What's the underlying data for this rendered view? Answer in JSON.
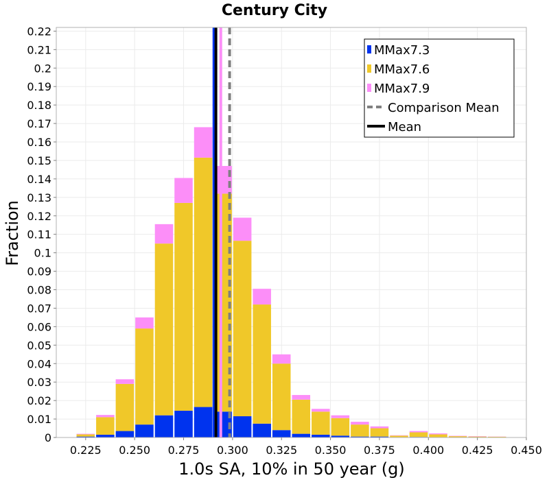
{
  "chart_data": {
    "type": "bar",
    "stacked": true,
    "title": "Century City",
    "xlabel": "1.0s SA, 10% in 50 year (g)",
    "ylabel": "Fraction",
    "xlim": [
      0.21,
      0.45
    ],
    "ylim": [
      0,
      0.222
    ],
    "bin_width": 0.01,
    "x": [
      0.225,
      0.235,
      0.245,
      0.255,
      0.265,
      0.275,
      0.285,
      0.295,
      0.305,
      0.315,
      0.325,
      0.335,
      0.345,
      0.355,
      0.365,
      0.375,
      0.385,
      0.395,
      0.405,
      0.415,
      0.425,
      0.435
    ],
    "series": [
      {
        "name": "MMax7.3",
        "color": "#0033ee",
        "values": [
          0.0005,
          0.0015,
          0.0035,
          0.007,
          0.012,
          0.0145,
          0.0165,
          0.014,
          0.0115,
          0.0075,
          0.004,
          0.002,
          0.0015,
          0.001,
          0.0005,
          0.0005,
          0.0002,
          0.0003,
          0.0002,
          0.0001,
          0.0001,
          0.0001
        ]
      },
      {
        "name": "MMax7.6",
        "color": "#f0c829",
        "values": [
          0.0012,
          0.0095,
          0.0255,
          0.052,
          0.093,
          0.1125,
          0.135,
          0.118,
          0.095,
          0.0645,
          0.036,
          0.0185,
          0.0125,
          0.0095,
          0.0065,
          0.0045,
          0.0008,
          0.0025,
          0.0015,
          0.0006,
          0.0004,
          0.0003
        ]
      },
      {
        "name": "MMax7.9",
        "color": "#fc8ef8",
        "values": [
          0.0003,
          0.0012,
          0.0025,
          0.006,
          0.0105,
          0.0135,
          0.0165,
          0.015,
          0.0125,
          0.0085,
          0.005,
          0.0025,
          0.0015,
          0.0015,
          0.0015,
          0.001,
          0.0002,
          0.0007,
          0.0005,
          0.0002,
          0.0002,
          0.0001
        ]
      }
    ],
    "lines": [
      {
        "name": "Comparison Mean",
        "x": 0.2985,
        "color": "#808080",
        "style": "dashed"
      },
      {
        "name": "Mean",
        "x": 0.2915,
        "color": "#000000",
        "style": "solid"
      }
    ],
    "series_mean_lines": [
      {
        "series": "MMax7.3",
        "x": 0.2905,
        "color": "#0033ee"
      },
      {
        "series": "MMax7.9",
        "x": 0.294,
        "color": "#fc8ef8"
      }
    ],
    "xticks": [
      "0.225",
      "0.250",
      "0.275",
      "0.300",
      "0.325",
      "0.350",
      "0.375",
      "0.400",
      "0.425",
      "0.450"
    ],
    "xtick_values": [
      0.225,
      0.25,
      0.275,
      0.3,
      0.325,
      0.35,
      0.375,
      0.4,
      0.425,
      0.45
    ],
    "yticks": [
      "0",
      "0.01",
      "0.02",
      "0.03",
      "0.04",
      "0.05",
      "0.06",
      "0.07",
      "0.08",
      "0.09",
      "0.1",
      "0.11",
      "0.12",
      "0.13",
      "0.14",
      "0.15",
      "0.16",
      "0.17",
      "0.18",
      "0.19",
      "0.2",
      "0.21",
      "0.22"
    ],
    "ytick_values": [
      0,
      0.01,
      0.02,
      0.03,
      0.04,
      0.05,
      0.06,
      0.07,
      0.08,
      0.09,
      0.1,
      0.11,
      0.12,
      0.13,
      0.14,
      0.15,
      0.16,
      0.17,
      0.18,
      0.19,
      0.2,
      0.21,
      0.22
    ],
    "grid": true,
    "legend": {
      "position": "top-right",
      "entries": [
        {
          "label": "MMax7.3",
          "kind": "box",
          "color": "#0033ee"
        },
        {
          "label": "MMax7.6",
          "kind": "box",
          "color": "#f0c829"
        },
        {
          "label": "MMax7.9",
          "kind": "box",
          "color": "#fc8ef8"
        },
        {
          "label": "Comparison Mean",
          "kind": "dashed",
          "color": "#808080"
        },
        {
          "label": "Mean",
          "kind": "solid",
          "color": "#000000"
        }
      ]
    }
  }
}
